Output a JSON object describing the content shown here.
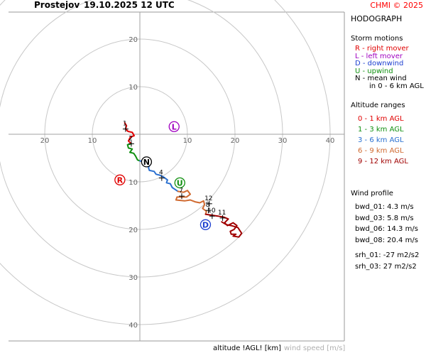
{
  "header": {
    "station": "Prostejov",
    "datetime": "19.10.2025 12 UTC",
    "credit": "CHMI © 2025"
  },
  "sidebar": {
    "title": "HODOGRAPH",
    "storm_motions_title": "Storm motions",
    "storm_motions": [
      {
        "text": "R - right mover",
        "color": "#e00000"
      },
      {
        "text": "L - left mover",
        "color": "#a000c0"
      },
      {
        "text": "D - downwind",
        "color": "#1e40d0"
      },
      {
        "text": "U - upwind",
        "color": "#109010"
      },
      {
        "text": "N - mean wind",
        "cont": "in 0 - 6 km AGL",
        "color": "#000000"
      }
    ],
    "altitude_title": "Altitude ranges",
    "altitude_ranges": [
      {
        "text": "0 - 1 km AGL",
        "color": "#e00000"
      },
      {
        "text": "1 - 3 km AGL",
        "color": "#109010"
      },
      {
        "text": "3 - 6 km AGL",
        "color": "#2a70d0"
      },
      {
        "text": "6 - 9 km AGL",
        "color": "#d06a30"
      },
      {
        "text": "9 - 12 km AGL",
        "color": "#a00000"
      }
    ]
  },
  "wind_profile": {
    "title": "Wind profile",
    "items": [
      "bwd_01: 4.3 m/s",
      "bwd_03: 5.8 m/s",
      "bwd_06: 14.3 m/s",
      "bwd_08: 20.4 m/s"
    ],
    "srh": [
      "srh_01: -27 m2/s2",
      "srh_03: 27 m2/s2"
    ]
  },
  "footer": {
    "altitude_label": "altitude !AGL! [km]",
    "wind_speed_label": "wind speed [m/s]"
  },
  "chart_data": {
    "type": "line",
    "rings": [
      10,
      20,
      30,
      40
    ],
    "x_tick_labels": [
      "20",
      "10",
      "10",
      "20",
      "30",
      "40"
    ],
    "x_tick_values": [
      -20,
      -10,
      10,
      20,
      30,
      40
    ],
    "y_tick_labels": [
      "20",
      "10",
      "10",
      "20",
      "30",
      "40"
    ],
    "y_tick_values": [
      20,
      10,
      -10,
      -20,
      -30,
      -40
    ],
    "series": [
      {
        "color": "#e00000",
        "points": [
          [
            -3.2,
            2.4
          ],
          [
            -2.8,
            1.8
          ],
          [
            -3.0,
            1.1
          ],
          [
            -2.5,
            0.6
          ],
          [
            -1.6,
            0.4
          ],
          [
            -1.2,
            -0.3
          ],
          [
            -2.0,
            -0.6
          ],
          [
            -2.4,
            -1.4
          ],
          [
            -1.8,
            -2.0
          ]
        ]
      },
      {
        "color": "#109010",
        "points": [
          [
            -1.8,
            -2.0
          ],
          [
            -2.6,
            -2.2
          ],
          [
            -2.4,
            -2.9
          ],
          [
            -1.6,
            -3.1
          ],
          [
            -2.1,
            -3.8
          ],
          [
            -1.3,
            -4.0
          ],
          [
            -0.9,
            -4.6
          ],
          [
            -0.5,
            -5.4
          ],
          [
            0.0,
            -5.6
          ]
        ]
      },
      {
        "color": "#2a70d0",
        "points": [
          [
            0.0,
            -5.6
          ],
          [
            1.2,
            -5.8
          ],
          [
            2.2,
            -6.3
          ],
          [
            1.8,
            -7.0
          ],
          [
            2.0,
            -7.6
          ],
          [
            3.0,
            -7.8
          ],
          [
            3.4,
            -8.4
          ],
          [
            4.2,
            -8.6
          ],
          [
            5.0,
            -9.0
          ],
          [
            5.8,
            -9.6
          ],
          [
            5.6,
            -10.2
          ],
          [
            6.4,
            -10.4
          ],
          [
            6.8,
            -11.2
          ],
          [
            7.4,
            -11.6
          ],
          [
            8.0,
            -12.0
          ]
        ]
      },
      {
        "color": "#d06a30",
        "points": [
          [
            8.0,
            -12.0
          ],
          [
            9.2,
            -12.2
          ],
          [
            10.0,
            -11.8
          ],
          [
            10.6,
            -12.6
          ],
          [
            9.8,
            -13.2
          ],
          [
            7.8,
            -13.2
          ],
          [
            7.6,
            -13.8
          ],
          [
            9.4,
            -14.0
          ],
          [
            10.6,
            -13.8
          ],
          [
            11.6,
            -14.2
          ],
          [
            12.6,
            -14.4
          ],
          [
            13.4,
            -14.0
          ],
          [
            13.6,
            -14.8
          ],
          [
            13.2,
            -15.6
          ],
          [
            14.0,
            -16.2
          ],
          [
            13.8,
            -16.8
          ]
        ]
      },
      {
        "color": "#a00000",
        "points": [
          [
            13.8,
            -16.8
          ],
          [
            15.0,
            -17.0
          ],
          [
            16.4,
            -17.2
          ],
          [
            17.6,
            -17.4
          ],
          [
            18.6,
            -17.8
          ],
          [
            17.8,
            -18.6
          ],
          [
            18.4,
            -19.2
          ],
          [
            19.6,
            -18.6
          ],
          [
            20.4,
            -19.2
          ],
          [
            19.8,
            -20.0
          ],
          [
            19.0,
            -20.4
          ],
          [
            19.2,
            -21.0
          ],
          [
            20.2,
            -21.0
          ],
          [
            19.6,
            -21.4
          ],
          [
            20.8,
            -21.6
          ],
          [
            21.4,
            -20.8
          ],
          [
            20.6,
            -19.6
          ],
          [
            19.2,
            -19.2
          ],
          [
            18.2,
            -19.0
          ],
          [
            17.2,
            -18.4
          ]
        ]
      }
    ],
    "altitude_markers": [
      {
        "label": "1",
        "x": -3.0,
        "y": 1.1
      },
      {
        "label": "2",
        "x": -1.8,
        "y": -2.0
      },
      {
        "label": "4",
        "x": 4.6,
        "y": -9.2
      },
      {
        "label": "7",
        "x": 8.8,
        "y": -13.0
      },
      {
        "label": "12",
        "x": 14.6,
        "y": -14.6
      },
      {
        "label": "8",
        "x": 14.4,
        "y": -16.0
      },
      {
        "label": "10",
        "x": 15.2,
        "y": -17.2
      },
      {
        "label": "11",
        "x": 17.4,
        "y": -17.6
      }
    ],
    "storm_markers": [
      {
        "letter": "R",
        "x": -4.2,
        "y": -9.6,
        "color": "#e00000"
      },
      {
        "letter": "L",
        "x": 7.2,
        "y": 1.6,
        "color": "#a000c0"
      },
      {
        "letter": "N",
        "x": 1.4,
        "y": -5.8,
        "color": "#000000"
      },
      {
        "letter": "U",
        "x": 8.4,
        "y": -10.2,
        "color": "#109010"
      },
      {
        "letter": "D",
        "x": 13.8,
        "y": -19.0,
        "color": "#1e40d0"
      }
    ]
  }
}
